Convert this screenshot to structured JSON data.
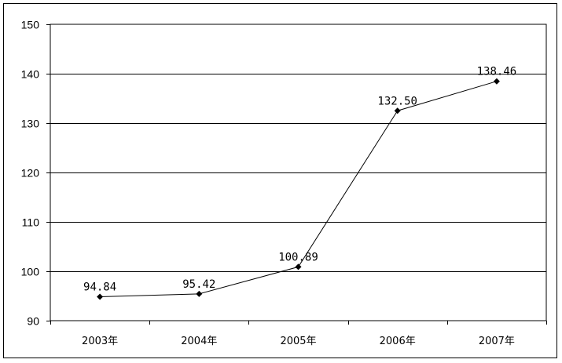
{
  "chart_data": {
    "type": "line",
    "title": "",
    "xlabel": "",
    "ylabel": "",
    "categories": [
      "2003年",
      "2004年",
      "2005年",
      "2006年",
      "2007年"
    ],
    "series": [
      {
        "values": [
          94.84,
          95.42,
          100.89,
          132.5,
          138.46
        ],
        "labels": [
          "94.84",
          "95.42",
          "100.89",
          "132.50",
          "138.46"
        ],
        "color": "#000000",
        "marker": "diamond"
      }
    ],
    "ylim": [
      90,
      150
    ],
    "yticks": [
      "90",
      "100",
      "110",
      "120",
      "130",
      "140",
      "150"
    ],
    "grid": true,
    "legend": "none"
  }
}
